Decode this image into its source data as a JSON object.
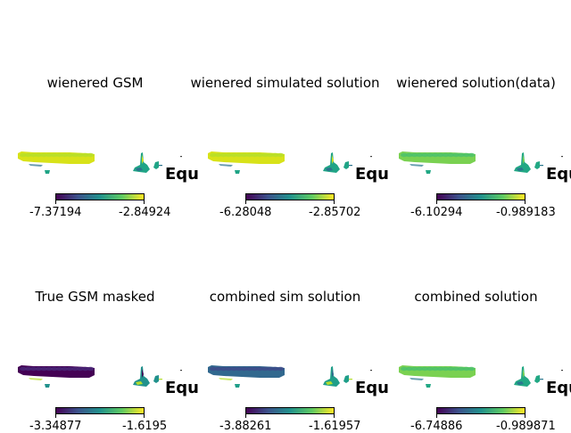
{
  "chart_data": [
    {
      "type": "heatmap",
      "title": "wienered GSM",
      "projection_label": "Equ",
      "colorbar": {
        "min": "-7.37194",
        "max": "-2.84924"
      },
      "palette": [
        "#d8e219",
        "#b5de2b",
        "#20a486",
        "#2c728e"
      ]
    },
    {
      "type": "heatmap",
      "title": "wienered simulated solution",
      "projection_label": "Equ",
      "colorbar": {
        "min": "-6.28048",
        "max": "-2.85702"
      },
      "palette": [
        "#d8e219",
        "#b5de2b",
        "#20a486",
        "#2c728e"
      ]
    },
    {
      "type": "heatmap",
      "title": "wienered solution(data)",
      "projection_label": "Equ",
      "colorbar": {
        "min": "-6.10294",
        "max": "-0.989183"
      },
      "palette": [
        "#7ad151",
        "#4ac16d",
        "#22a884",
        "#2a788e"
      ]
    },
    {
      "type": "heatmap",
      "title": "True GSM masked",
      "projection_label": "Equ",
      "colorbar": {
        "min": "-3.34877",
        "max": "-1.6195"
      },
      "palette": [
        "#440154",
        "#482878",
        "#21918c",
        "#b5de2b"
      ]
    },
    {
      "type": "heatmap",
      "title": "combined sim solution",
      "projection_label": "Equ",
      "colorbar": {
        "min": "-3.88261",
        "max": "-1.61957"
      },
      "palette": [
        "#31688e",
        "#3e4a89",
        "#1f9e89",
        "#b5de2b"
      ]
    },
    {
      "type": "heatmap",
      "title": "combined solution",
      "projection_label": "Equ",
      "colorbar": {
        "min": "-6.74886",
        "max": "-0.989871"
      },
      "palette": [
        "#7ad151",
        "#4ac16d",
        "#22a884",
        "#2a788e"
      ]
    }
  ]
}
